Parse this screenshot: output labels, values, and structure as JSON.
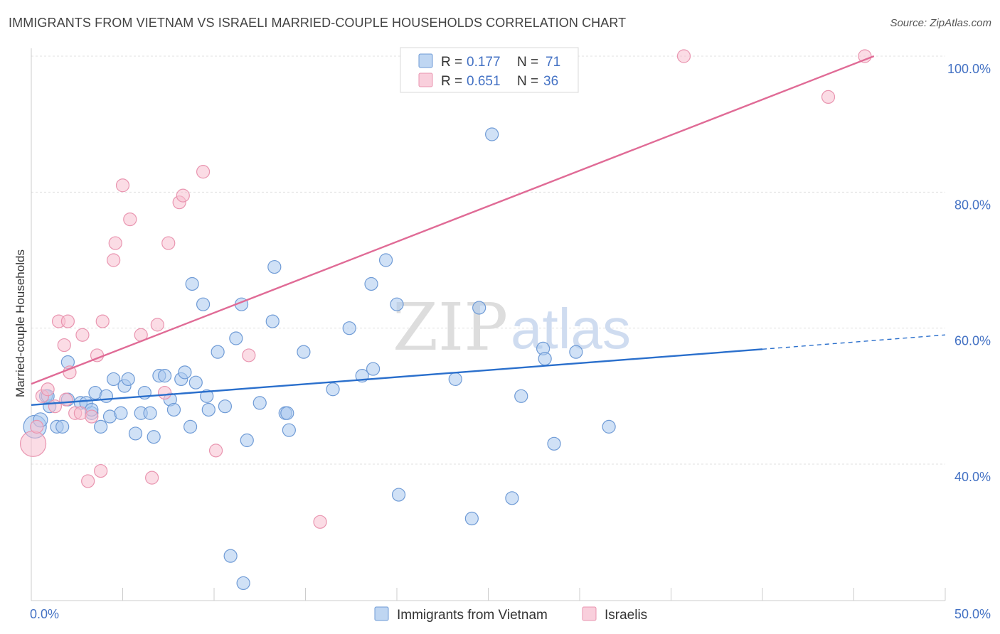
{
  "title": "IMMIGRANTS FROM VIETNAM VS ISRAELI MARRIED-COUPLE HOUSEHOLDS CORRELATION CHART",
  "source": "Source: ZipAtlas.com",
  "watermark": {
    "zip": "ZIP",
    "atlas": "atlas"
  },
  "colors": {
    "blue_fill": "#a9c8ee",
    "blue_stroke": "#6f9bd6",
    "blue_line": "#2a6fcc",
    "pink_fill": "#f7bfd0",
    "pink_stroke": "#e995b0",
    "pink_line": "#e06b96",
    "grid": "#e0e0e0",
    "tick_label": "#4472c4"
  },
  "legend": {
    "rows": [
      {
        "r_label": "R =",
        "r_value": "0.177",
        "n_label": "N =",
        "n_value": "71"
      },
      {
        "r_label": "R =",
        "r_value": "0.651",
        "n_label": "N =",
        "n_value": "36"
      }
    ]
  },
  "chart_data": {
    "type": "scatter",
    "title": "IMMIGRANTS FROM VIETNAM VS ISRAELI MARRIED-COUPLE HOUSEHOLDS CORRELATION CHART",
    "xlabel": "",
    "ylabel": "Married-couple Households",
    "xlim": [
      0,
      50
    ],
    "ylim": [
      20,
      102
    ],
    "x_tick_labels": [
      {
        "value": 0,
        "label": "0.0%"
      },
      {
        "value": 50,
        "label": "50.0%"
      }
    ],
    "y_tick_labels": [
      {
        "value": 40,
        "label": "40.0%"
      },
      {
        "value": 60,
        "label": "60.0%"
      },
      {
        "value": 80,
        "label": "80.0%"
      },
      {
        "value": 100,
        "label": "100.0%"
      }
    ],
    "x_minor_ticks": [
      0,
      5,
      10,
      15,
      20,
      25,
      30,
      35,
      40,
      45,
      50
    ],
    "legend_position": "top-center",
    "series": [
      {
        "name": "Immigrants from Vietnam",
        "color": "blue",
        "r": 0.177,
        "n": 71,
        "trend": {
          "x": [
            0,
            40,
            50
          ],
          "y": [
            48.7,
            56.9,
            59.0
          ],
          "solid_until": 40
        },
        "points": [
          [
            0.2,
            45.5,
            16
          ],
          [
            0.5,
            46.5,
            10
          ],
          [
            0.8,
            50.0,
            9
          ],
          [
            1.0,
            48.5,
            9
          ],
          [
            1.4,
            45.5,
            9
          ],
          [
            1.7,
            45.5,
            9
          ],
          [
            2.0,
            49.5,
            9
          ],
          [
            2.0,
            55.0,
            9
          ],
          [
            2.7,
            49.0,
            9
          ],
          [
            3.0,
            49.0,
            9
          ],
          [
            3.3,
            47.5,
            9
          ],
          [
            3.3,
            48.0,
            9
          ],
          [
            3.5,
            50.5,
            9
          ],
          [
            3.8,
            45.5,
            9
          ],
          [
            4.1,
            50.0,
            9
          ],
          [
            4.3,
            47.0,
            9
          ],
          [
            4.5,
            52.5,
            9
          ],
          [
            4.9,
            47.5,
            9
          ],
          [
            5.1,
            51.5,
            9
          ],
          [
            5.3,
            52.5,
            9
          ],
          [
            5.7,
            44.5,
            9
          ],
          [
            6.0,
            47.5,
            9
          ],
          [
            6.2,
            50.5,
            9
          ],
          [
            6.5,
            47.5,
            9
          ],
          [
            6.7,
            44.0,
            9
          ],
          [
            7.0,
            53.0,
            9
          ],
          [
            7.3,
            53.0,
            9
          ],
          [
            7.6,
            49.5,
            9
          ],
          [
            7.8,
            48.0,
            9
          ],
          [
            8.2,
            52.5,
            9
          ],
          [
            8.4,
            53.5,
            9
          ],
          [
            8.7,
            45.5,
            9
          ],
          [
            8.8,
            66.5,
            9
          ],
          [
            9.0,
            52.0,
            9
          ],
          [
            9.4,
            63.5,
            9
          ],
          [
            9.6,
            50.0,
            9
          ],
          [
            9.7,
            48.0,
            9
          ],
          [
            10.2,
            56.5,
            9
          ],
          [
            10.6,
            48.5,
            9
          ],
          [
            10.9,
            26.5,
            9
          ],
          [
            11.2,
            58.5,
            9
          ],
          [
            11.5,
            63.5,
            9
          ],
          [
            11.6,
            22.5,
            9
          ],
          [
            11.8,
            43.5,
            9
          ],
          [
            12.5,
            49.0,
            9
          ],
          [
            13.2,
            61.0,
            9
          ],
          [
            13.3,
            69.0,
            9
          ],
          [
            13.9,
            47.5,
            9
          ],
          [
            14.0,
            47.5,
            9
          ],
          [
            14.1,
            45.0,
            9
          ],
          [
            14.9,
            56.5,
            9
          ],
          [
            16.5,
            51.0,
            9
          ],
          [
            17.4,
            60.0,
            9
          ],
          [
            18.1,
            53.0,
            9
          ],
          [
            18.6,
            66.5,
            9
          ],
          [
            18.7,
            54.0,
            9
          ],
          [
            19.4,
            70.0,
            9
          ],
          [
            20.0,
            63.5,
            9
          ],
          [
            20.1,
            35.5,
            9
          ],
          [
            23.2,
            52.5,
            9
          ],
          [
            24.1,
            32.0,
            9
          ],
          [
            24.5,
            63.0,
            9
          ],
          [
            25.2,
            88.5,
            9
          ],
          [
            26.3,
            35.0,
            9
          ],
          [
            26.8,
            50.0,
            9
          ],
          [
            28.0,
            57.0,
            9
          ],
          [
            28.1,
            55.5,
            9
          ],
          [
            28.6,
            43.0,
            9
          ],
          [
            29.8,
            56.5,
            9
          ],
          [
            31.6,
            45.5,
            9
          ],
          [
            0.9,
            50.0,
            9
          ]
        ]
      },
      {
        "name": "Israelis",
        "color": "pink",
        "r": 0.651,
        "n": 36,
        "trend": {
          "x": [
            0,
            46.1
          ],
          "y": [
            51.8,
            100.0
          ],
          "solid_until": 46.1
        },
        "points": [
          [
            0.1,
            43.0,
            18
          ],
          [
            0.3,
            45.5,
            9
          ],
          [
            0.6,
            50.0,
            9
          ],
          [
            0.9,
            51.0,
            9
          ],
          [
            1.3,
            48.5,
            9
          ],
          [
            1.5,
            61.0,
            9
          ],
          [
            1.8,
            57.5,
            9
          ],
          [
            2.0,
            61.0,
            9
          ],
          [
            2.1,
            53.5,
            9
          ],
          [
            2.4,
            47.5,
            9
          ],
          [
            2.7,
            47.5,
            9
          ],
          [
            2.8,
            59.0,
            9
          ],
          [
            3.1,
            37.5,
            9
          ],
          [
            3.3,
            47.0,
            9
          ],
          [
            3.6,
            56.0,
            9
          ],
          [
            3.8,
            39.0,
            9
          ],
          [
            3.9,
            61.0,
            9
          ],
          [
            4.5,
            70.0,
            9
          ],
          [
            4.6,
            72.5,
            9
          ],
          [
            5.0,
            81.0,
            9
          ],
          [
            5.4,
            76.0,
            9
          ],
          [
            6.0,
            59.0,
            9
          ],
          [
            6.6,
            38.0,
            9
          ],
          [
            6.9,
            60.5,
            9
          ],
          [
            7.3,
            50.5,
            9
          ],
          [
            7.5,
            72.5,
            9
          ],
          [
            8.1,
            78.5,
            9
          ],
          [
            8.3,
            79.5,
            9
          ],
          [
            9.4,
            83.0,
            9
          ],
          [
            10.1,
            42.0,
            9
          ],
          [
            11.9,
            56.0,
            9
          ],
          [
            15.8,
            31.5,
            9
          ],
          [
            35.7,
            100.0,
            9
          ],
          [
            43.6,
            94.0,
            9
          ],
          [
            45.6,
            100.0,
            9
          ],
          [
            1.9,
            49.5,
            9
          ]
        ]
      }
    ]
  },
  "bottom_legend": {
    "items": [
      "Immigrants from Vietnam",
      "Israelis"
    ]
  }
}
